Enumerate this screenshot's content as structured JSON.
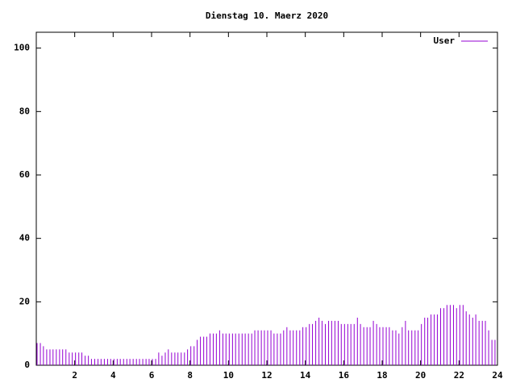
{
  "chart_data": {
    "type": "impulse",
    "title": "Dienstag 10. Maerz 2020",
    "x": [
      0,
      0.17,
      0.33,
      0.5,
      0.67,
      0.83,
      1,
      1.17,
      1.33,
      1.5,
      1.67,
      1.83,
      2,
      2.17,
      2.33,
      2.5,
      2.67,
      2.83,
      3,
      3.17,
      3.33,
      3.5,
      3.67,
      3.83,
      4,
      4.17,
      4.33,
      4.5,
      4.67,
      4.83,
      5,
      5.17,
      5.33,
      5.5,
      5.67,
      5.83,
      6,
      6.17,
      6.33,
      6.5,
      6.67,
      6.83,
      7,
      7.17,
      7.33,
      7.5,
      7.67,
      7.83,
      8,
      8.17,
      8.33,
      8.5,
      8.67,
      8.83,
      9,
      9.17,
      9.33,
      9.5,
      9.67,
      9.83,
      10,
      10.17,
      10.33,
      10.5,
      10.67,
      10.83,
      11,
      11.17,
      11.33,
      11.5,
      11.67,
      11.83,
      12,
      12.17,
      12.33,
      12.5,
      12.67,
      12.83,
      13,
      13.17,
      13.33,
      13.5,
      13.67,
      13.83,
      14,
      14.17,
      14.33,
      14.5,
      14.67,
      14.83,
      15,
      15.17,
      15.33,
      15.5,
      15.67,
      15.83,
      16,
      16.17,
      16.33,
      16.5,
      16.67,
      16.83,
      17,
      17.17,
      17.33,
      17.5,
      17.67,
      17.83,
      18,
      18.17,
      18.33,
      18.5,
      18.67,
      18.83,
      19,
      19.17,
      19.33,
      19.5,
      19.67,
      19.83,
      20,
      20.17,
      20.33,
      20.5,
      20.67,
      20.83,
      21,
      21.17,
      21.33,
      21.5,
      21.67,
      21.83,
      22,
      22.17,
      22.33,
      22.5,
      22.67,
      22.83,
      23,
      23.17,
      23.33,
      23.5,
      23.67,
      23.83
    ],
    "series": [
      {
        "name": "User",
        "color": "#9400d3",
        "values": [
          7,
          7,
          6,
          5,
          5,
          5,
          5,
          5,
          5,
          5,
          4,
          4,
          4,
          4,
          4,
          3,
          3,
          2,
          2,
          2,
          2,
          2,
          2,
          2,
          2,
          2,
          2,
          2,
          2,
          2,
          2,
          2,
          2,
          2,
          2,
          2,
          2,
          2,
          4,
          3,
          4,
          5,
          4,
          4,
          4,
          4,
          4,
          5,
          6,
          6,
          8,
          9,
          9,
          9,
          10,
          10,
          10,
          11,
          10,
          10,
          10,
          10,
          10,
          10,
          10,
          10,
          10,
          10,
          11,
          11,
          11,
          11,
          11,
          11,
          10,
          10,
          10,
          11,
          12,
          11,
          11,
          11,
          11,
          12,
          12,
          13,
          13,
          14,
          15,
          14,
          13,
          14,
          14,
          14,
          14,
          13,
          13,
          13,
          13,
          13,
          15,
          13,
          12,
          12,
          12,
          14,
          13,
          12,
          12,
          12,
          12,
          11,
          11,
          10,
          12,
          14,
          11,
          11,
          11,
          11,
          13,
          15,
          15,
          16,
          16,
          16,
          18,
          18,
          19,
          19,
          19,
          18,
          19,
          19,
          17,
          16,
          15,
          16,
          14,
          14,
          14,
          11,
          8,
          8
        ]
      }
    ],
    "xlim": [
      0,
      24
    ],
    "xticks": [
      2,
      4,
      6,
      8,
      10,
      12,
      14,
      16,
      18,
      20,
      22,
      24
    ],
    "ylim": [
      0,
      105
    ],
    "yticks": [
      0,
      20,
      40,
      60,
      80,
      100
    ],
    "legend": "top-right"
  }
}
